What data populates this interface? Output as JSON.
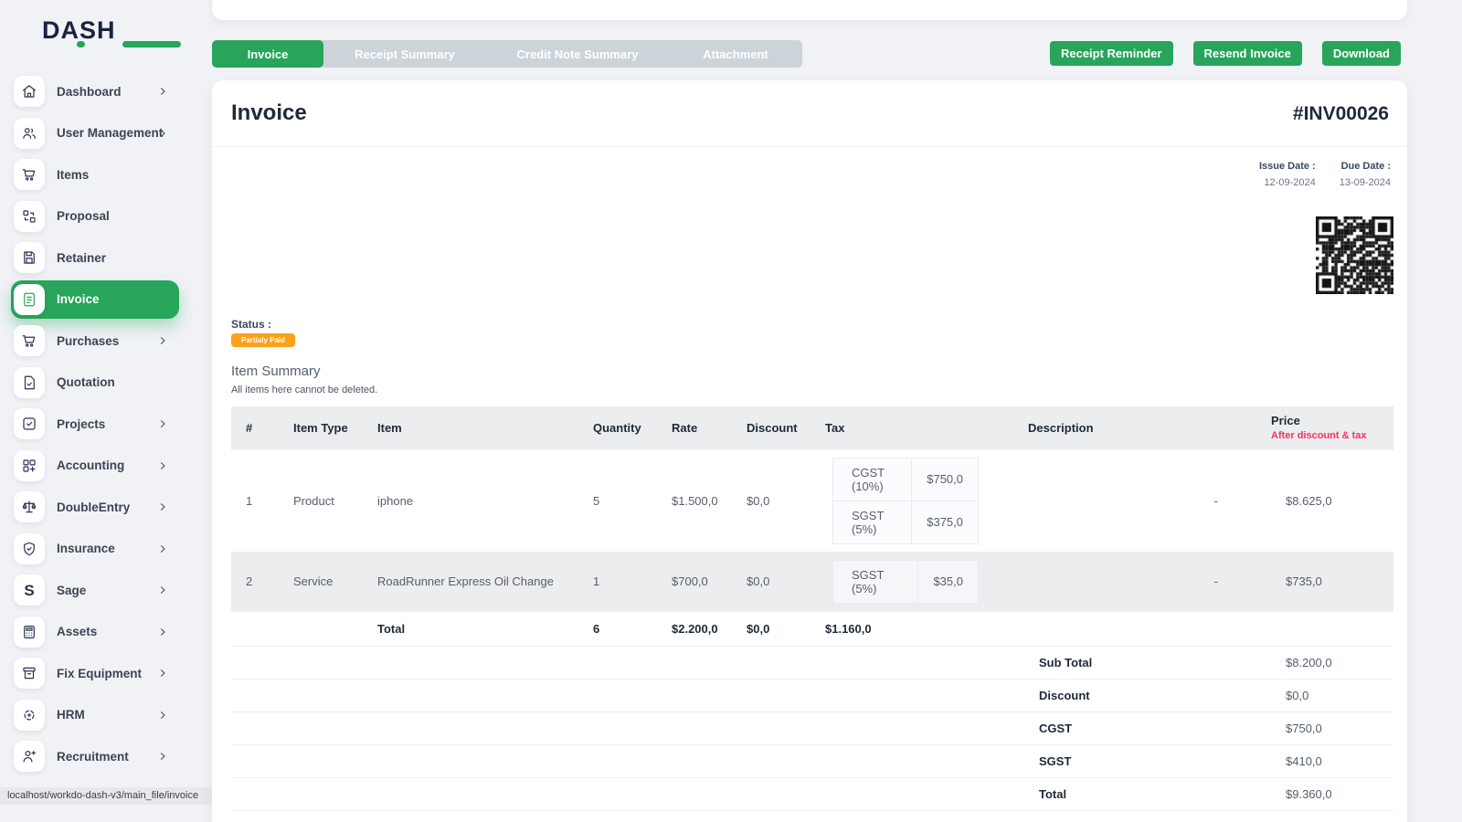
{
  "colors": {
    "accent": "#26a55b",
    "orange": "#fca11a",
    "red": "#fc2e5f",
    "navy": "#1b2240"
  },
  "logo": {
    "text": "DASH"
  },
  "statusbar": {
    "url": "localhost/workdo-dash-v3/main_file/invoice"
  },
  "sidebar": {
    "items": [
      {
        "label": "Dashboard",
        "chevron": true,
        "active": false
      },
      {
        "label": "User Management",
        "chevron": true,
        "active": false
      },
      {
        "label": "Items",
        "chevron": false,
        "active": false
      },
      {
        "label": "Proposal",
        "chevron": false,
        "active": false
      },
      {
        "label": "Retainer",
        "chevron": false,
        "active": false
      },
      {
        "label": "Invoice",
        "chevron": false,
        "active": true
      },
      {
        "label": "Purchases",
        "chevron": true,
        "active": false
      },
      {
        "label": "Quotation",
        "chevron": false,
        "active": false
      },
      {
        "label": "Projects",
        "chevron": true,
        "active": false
      },
      {
        "label": "Accounting",
        "chevron": true,
        "active": false
      },
      {
        "label": "DoubleEntry",
        "chevron": true,
        "active": false
      },
      {
        "label": "Insurance",
        "chevron": true,
        "active": false
      },
      {
        "label": "Sage",
        "chevron": true,
        "active": false
      },
      {
        "label": "Assets",
        "chevron": true,
        "active": false
      },
      {
        "label": "Fix Equipment",
        "chevron": true,
        "active": false
      },
      {
        "label": "HRM",
        "chevron": true,
        "active": false
      },
      {
        "label": "Recruitment",
        "chevron": true,
        "active": false
      }
    ]
  },
  "tabs": [
    {
      "label": "Invoice",
      "active": true
    },
    {
      "label": "Receipt Summary",
      "active": false
    },
    {
      "label": "Credit Note Summary",
      "active": false
    },
    {
      "label": "Attachment",
      "active": false
    }
  ],
  "actions": {
    "receipt_reminder": "Receipt Reminder",
    "resend_invoice": "Resend Invoice",
    "download": "Download"
  },
  "invoice": {
    "title": "Invoice",
    "number": "#INV00026",
    "issue_date_label": "Issue Date :",
    "issue_date": "12-09-2024",
    "due_date_label": "Due Date :",
    "due_date": "13-09-2024",
    "status_label": "Status :",
    "status": "Partialy Paid",
    "section_title": "Item Summary",
    "section_note": "All items here cannot be deleted.",
    "table": {
      "headers": [
        "#",
        "Item Type",
        "Item",
        "Quantity",
        "Rate",
        "Discount",
        "Tax",
        "Description",
        "Price"
      ],
      "price_note": "After discount & tax",
      "rows": [
        {
          "num": "1",
          "type": "Product",
          "item": "iphone",
          "quantity": "5",
          "rate": "$1.500,0",
          "discount": "$0,0",
          "taxes": [
            {
              "name": "CGST (10%)",
              "value": "$750,0"
            },
            {
              "name": "SGST (5%)",
              "value": "$375,0"
            }
          ],
          "description": "-",
          "price": "$8.625,0"
        },
        {
          "num": "2",
          "type": "Service",
          "item": "RoadRunner Express Oil Change",
          "quantity": "1",
          "rate": "$700,0",
          "discount": "$0,0",
          "taxes": [
            {
              "name": "SGST (5%)",
              "value": "$35,0"
            }
          ],
          "description": "-",
          "price": "$735,0"
        }
      ],
      "total": {
        "label": "Total",
        "quantity": "6",
        "rate": "$2.200,0",
        "discount": "$0,0",
        "tax": "$1.160,0"
      },
      "summary": [
        {
          "label": "Sub Total",
          "value": "$8.200,0"
        },
        {
          "label": "Discount",
          "value": "$0,0"
        },
        {
          "label": "CGST",
          "value": "$750,0"
        },
        {
          "label": "SGST",
          "value": "$410,0"
        },
        {
          "label": "Total",
          "value": "$9.360,0"
        }
      ]
    }
  }
}
